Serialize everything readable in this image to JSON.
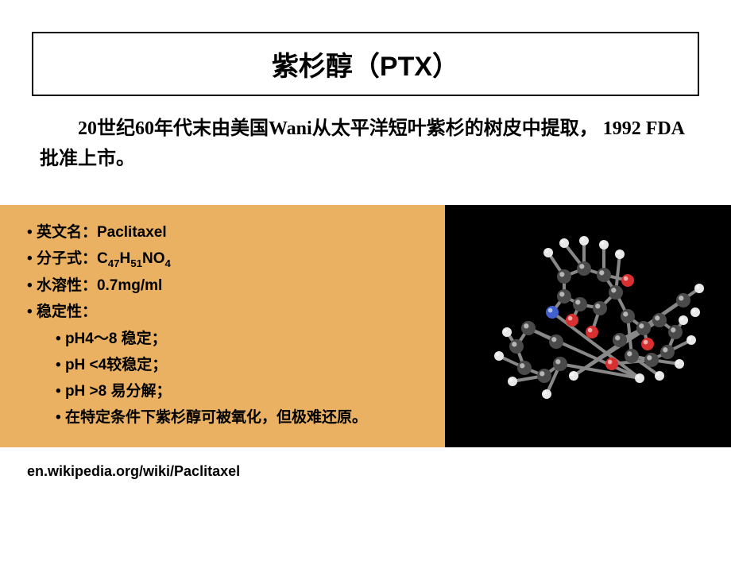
{
  "title": "紫杉醇（PTX）",
  "intro": "20世纪60年代末由美国Wani从太平洋短叶紫杉的树皮中提取， 1992 FDA批准上市。",
  "info": {
    "english_name_label": "英文名：",
    "english_name_value": "Paclitaxel",
    "formula_label": "分子式：",
    "formula_html": "C<sub>47</sub>H<sub>51</sub>NO<sub>4</sub>",
    "solubility_label": "水溶性：",
    "solubility_value": "0.7mg/ml",
    "stability_label": "稳定性：",
    "stability_items": [
      "pH4～8 稳定；",
      "pH <4较稳定；",
      "pH >8 易分解；",
      "在特定条件下紫杉醇可被氧化，但极难还原。"
    ]
  },
  "citation": "en.wikipedia.org/wiki/Paclitaxel",
  "colors": {
    "panel_bg": "#eab162",
    "molecule_bg": "#000000",
    "atom_c": "#4a4a4a",
    "atom_h": "#e8e8e8",
    "atom_o": "#d83030",
    "atom_n": "#4060d0",
    "bond": "#888888"
  }
}
